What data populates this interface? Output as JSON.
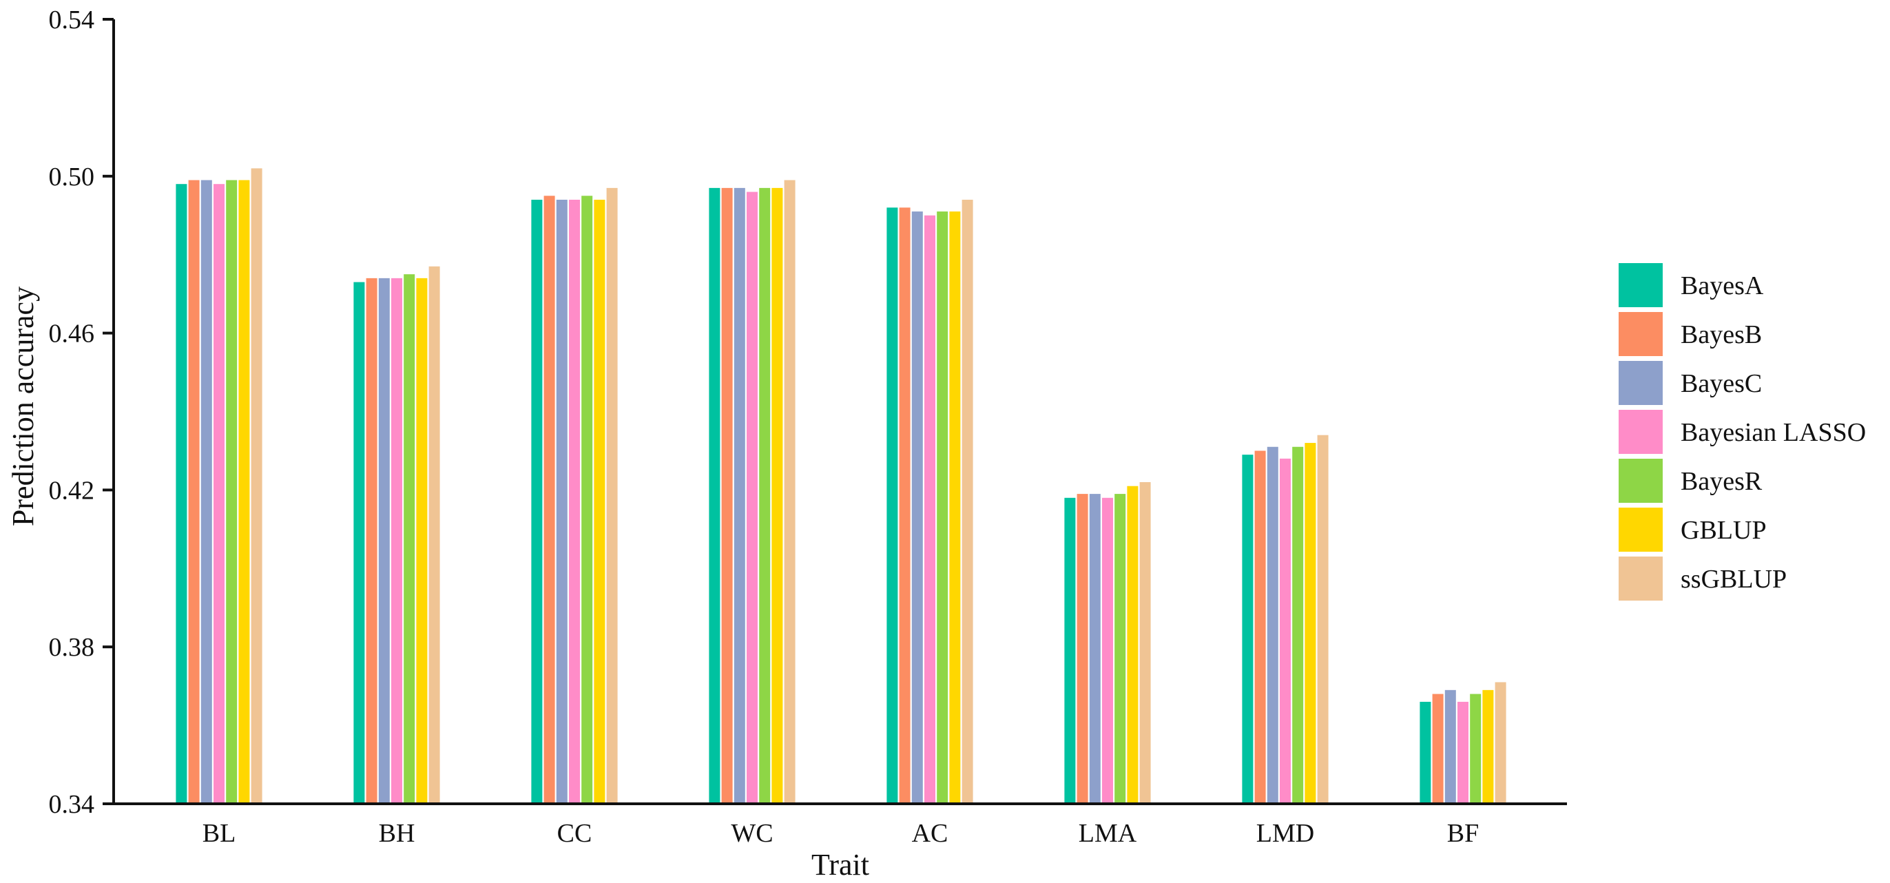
{
  "chart_data": {
    "type": "bar",
    "title": "",
    "xlabel": "Trait",
    "ylabel": "Prediction accuracy",
    "ylim": [
      0.34,
      0.54
    ],
    "yticks": [
      0.34,
      0.38,
      0.42,
      0.46,
      0.5,
      0.54
    ],
    "ytick_labels": [
      "0.34",
      "0.38",
      "0.42",
      "0.46",
      "0.50",
      "0.54"
    ],
    "grid": false,
    "legend_position": "right",
    "categories": [
      "BL",
      "BH",
      "CC",
      "WC",
      "AC",
      "LMA",
      "LMD",
      "BF"
    ],
    "series": [
      {
        "name": "BayesA",
        "color": "#00C2A0",
        "values": [
          0.498,
          0.473,
          0.494,
          0.497,
          0.492,
          0.418,
          0.429,
          0.366
        ]
      },
      {
        "name": "BayesB",
        "color": "#FC8D62",
        "values": [
          0.499,
          0.474,
          0.495,
          0.497,
          0.492,
          0.419,
          0.43,
          0.368
        ]
      },
      {
        "name": "BayesC",
        "color": "#8DA0CB",
        "values": [
          0.499,
          0.474,
          0.494,
          0.497,
          0.491,
          0.419,
          0.431,
          0.369
        ]
      },
      {
        "name": "Bayesian LASSO",
        "color": "#FF8CC8",
        "values": [
          0.498,
          0.474,
          0.494,
          0.496,
          0.49,
          0.418,
          0.428,
          0.366
        ]
      },
      {
        "name": "BayesR",
        "color": "#8ED646",
        "values": [
          0.499,
          0.475,
          0.495,
          0.497,
          0.491,
          0.419,
          0.431,
          0.368
        ]
      },
      {
        "name": "GBLUP",
        "color": "#FFD700",
        "values": [
          0.499,
          0.474,
          0.494,
          0.497,
          0.491,
          0.421,
          0.432,
          0.369
        ]
      },
      {
        "name": "ssGBLUP",
        "color": "#F0C494",
        "values": [
          0.502,
          0.477,
          0.497,
          0.499,
          0.494,
          0.422,
          0.434,
          0.371
        ]
      }
    ]
  }
}
